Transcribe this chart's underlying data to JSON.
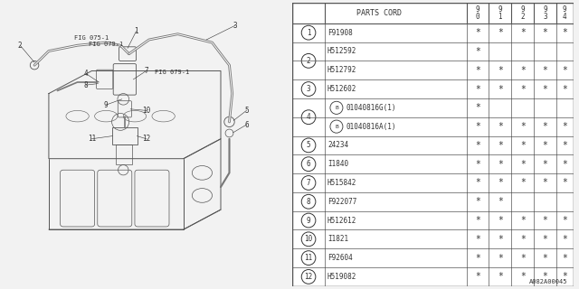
{
  "diagram_label": "A082A00045",
  "rows": [
    {
      "num": "1",
      "part": "F91908",
      "marks": [
        1,
        1,
        1,
        1,
        1
      ],
      "sub": false,
      "b_circle": false,
      "show_num": true
    },
    {
      "num": "2",
      "part": "H512592",
      "marks": [
        1,
        0,
        0,
        0,
        0
      ],
      "sub": false,
      "b_circle": false,
      "show_num": true
    },
    {
      "num": "2",
      "part": "H512792",
      "marks": [
        1,
        1,
        1,
        1,
        1
      ],
      "sub": true,
      "b_circle": false,
      "show_num": false
    },
    {
      "num": "3",
      "part": "H512602",
      "marks": [
        1,
        1,
        1,
        1,
        1
      ],
      "sub": false,
      "b_circle": false,
      "show_num": true
    },
    {
      "num": "4",
      "part": "01040816G(1)",
      "marks": [
        1,
        0,
        0,
        0,
        0
      ],
      "sub": false,
      "b_circle": true,
      "show_num": true
    },
    {
      "num": "4",
      "part": "01040816A(1)",
      "marks": [
        1,
        1,
        1,
        1,
        1
      ],
      "sub": true,
      "b_circle": true,
      "show_num": false
    },
    {
      "num": "5",
      "part": "24234",
      "marks": [
        1,
        1,
        1,
        1,
        1
      ],
      "sub": false,
      "b_circle": false,
      "show_num": true
    },
    {
      "num": "6",
      "part": "I1840",
      "marks": [
        1,
        1,
        1,
        1,
        1
      ],
      "sub": false,
      "b_circle": false,
      "show_num": true
    },
    {
      "num": "7",
      "part": "H515842",
      "marks": [
        1,
        1,
        1,
        1,
        1
      ],
      "sub": false,
      "b_circle": false,
      "show_num": true
    },
    {
      "num": "8",
      "part": "F922077",
      "marks": [
        1,
        1,
        0,
        0,
        0
      ],
      "sub": false,
      "b_circle": false,
      "show_num": true
    },
    {
      "num": "9",
      "part": "H512612",
      "marks": [
        1,
        1,
        1,
        1,
        1
      ],
      "sub": false,
      "b_circle": false,
      "show_num": true
    },
    {
      "num": "10",
      "part": "I1821",
      "marks": [
        1,
        1,
        1,
        1,
        1
      ],
      "sub": false,
      "b_circle": false,
      "show_num": true
    },
    {
      "num": "11",
      "part": "F92604",
      "marks": [
        1,
        1,
        1,
        1,
        1
      ],
      "sub": false,
      "b_circle": false,
      "show_num": true
    },
    {
      "num": "12",
      "part": "H519082",
      "marks": [
        1,
        1,
        1,
        1,
        1
      ],
      "sub": false,
      "b_circle": false,
      "show_num": true
    }
  ],
  "bg_color": "#f2f2f2",
  "line_color": "#555555",
  "text_color": "#333333"
}
